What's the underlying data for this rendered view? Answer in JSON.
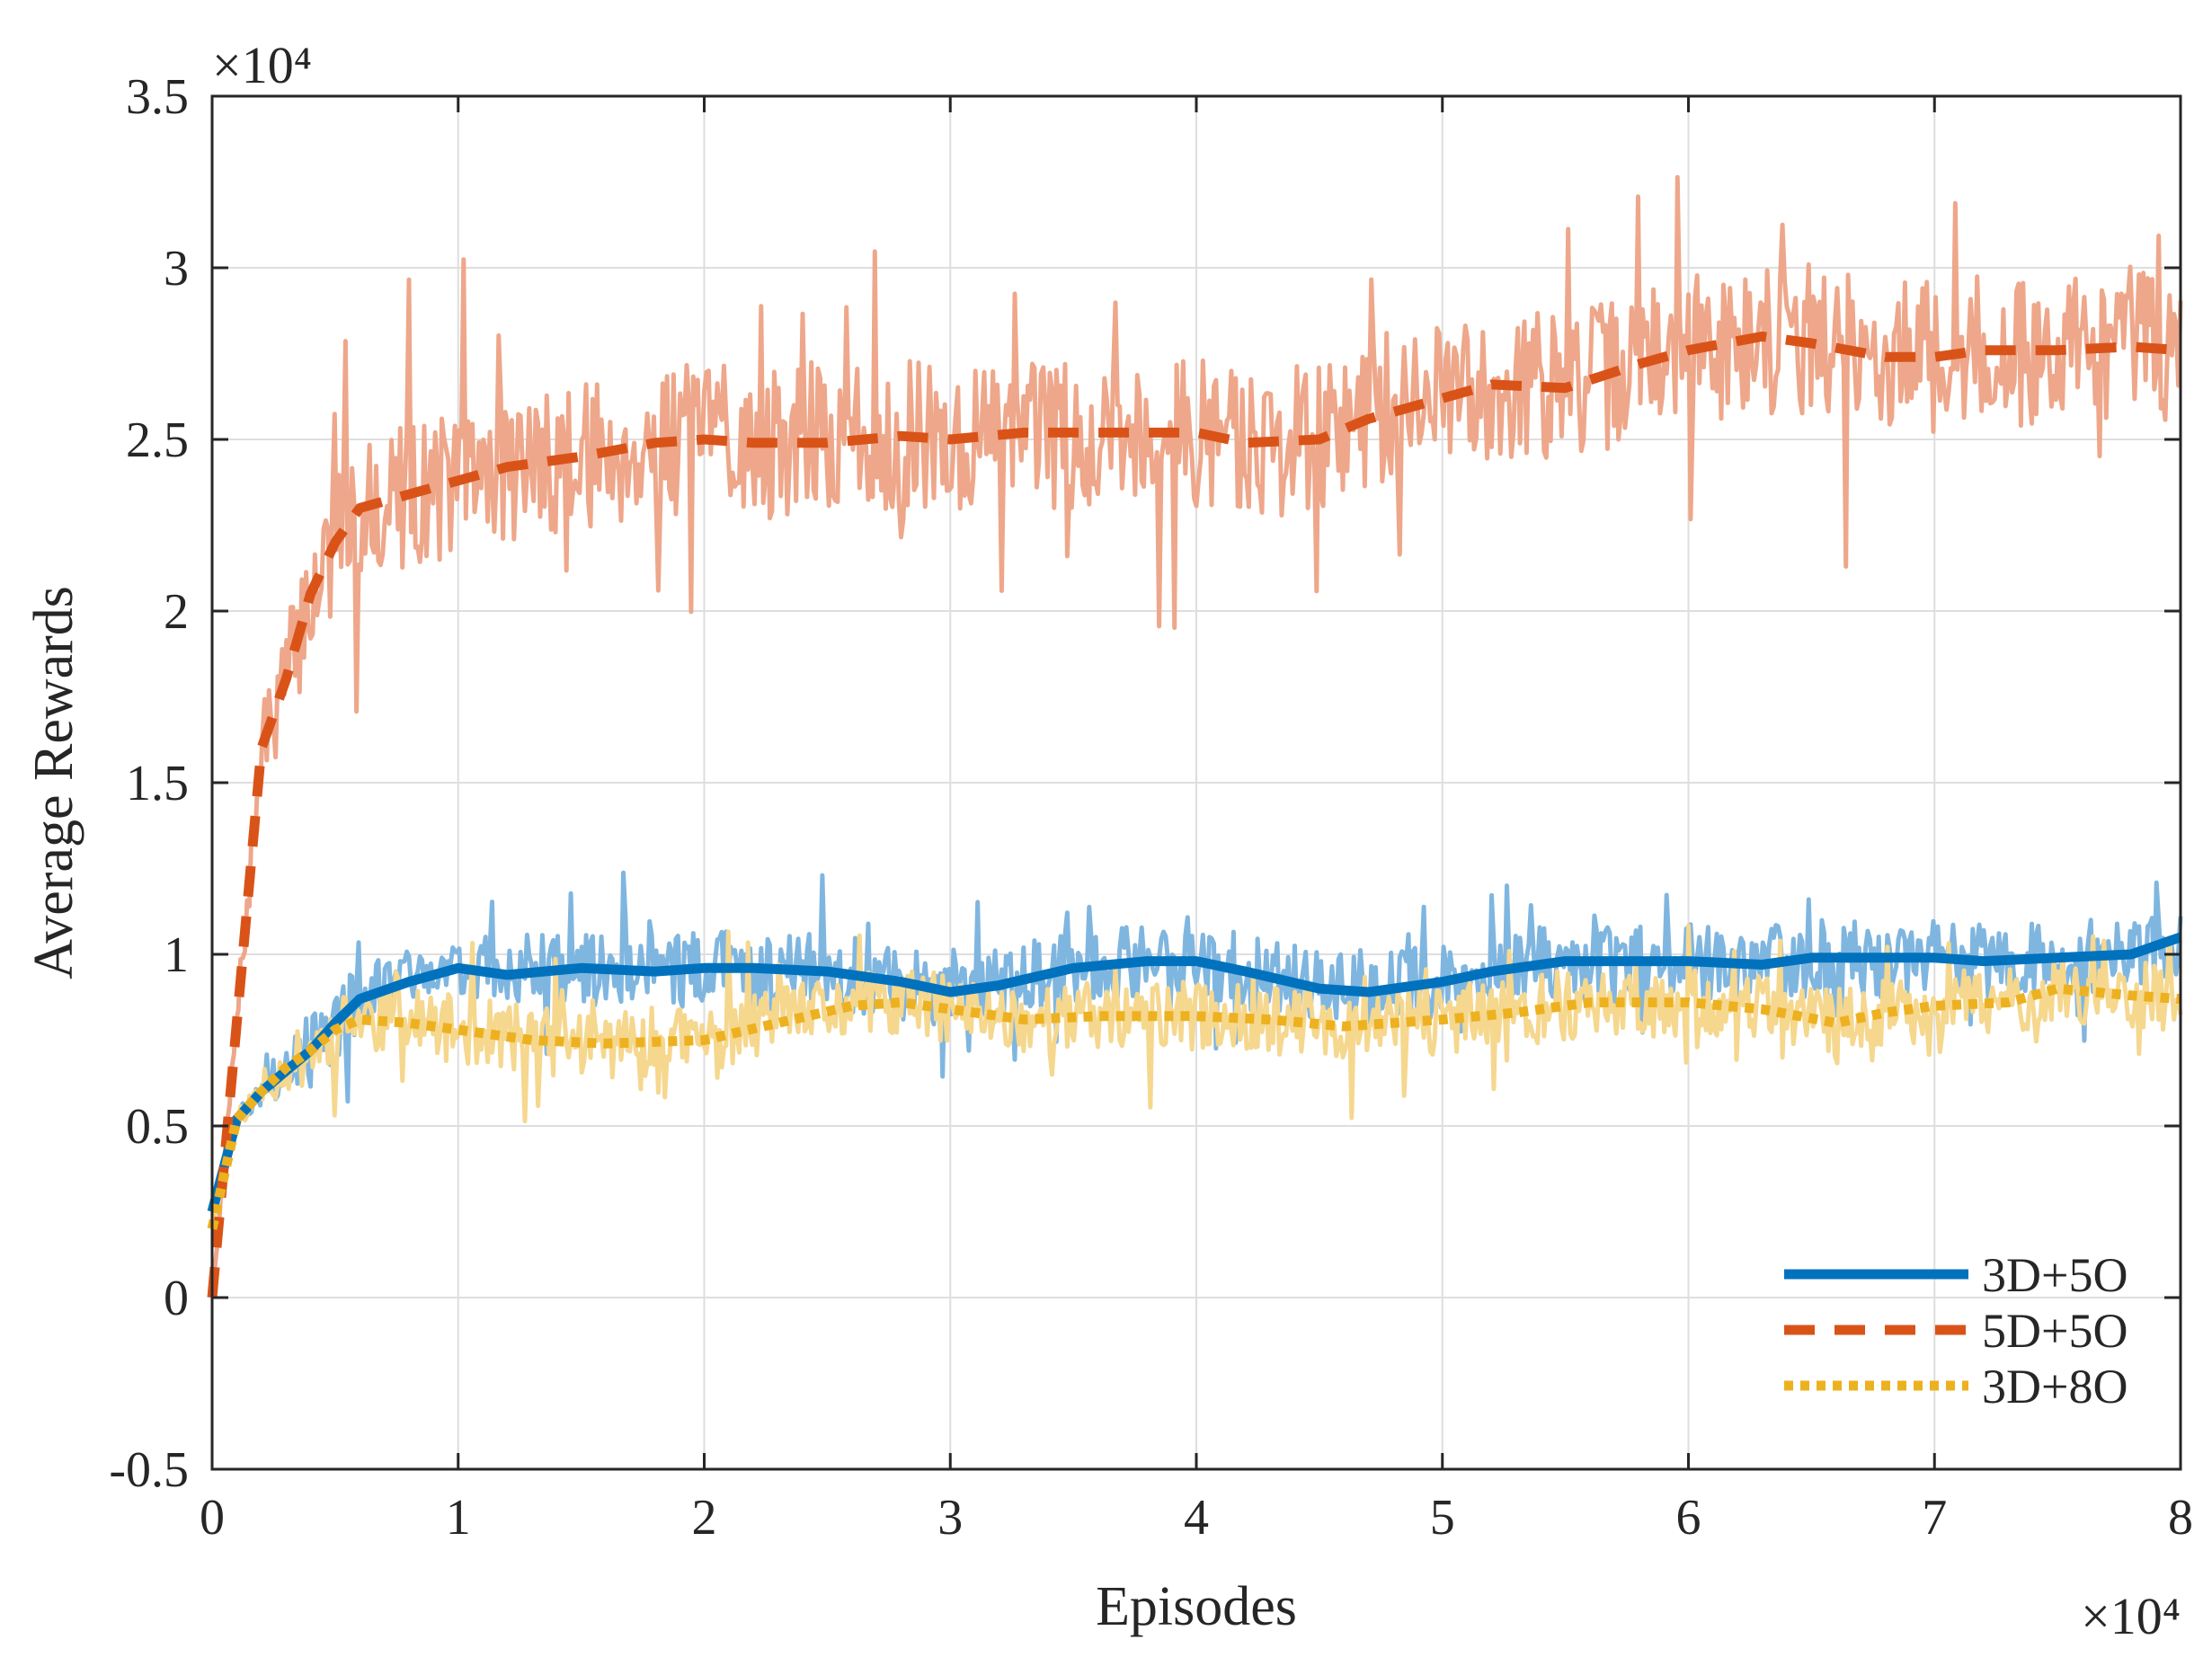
{
  "chart_data": {
    "type": "line",
    "xlabel": "Episodes",
    "ylabel": "Average Rewards",
    "x_exponent_label": "×10⁴",
    "y_exponent_label": "×10⁴",
    "xlim": [
      0,
      8
    ],
    "ylim": [
      -0.5,
      3.5
    ],
    "x_scale": "×10^4",
    "y_scale": "×10^4",
    "xticks": [
      0,
      1,
      2,
      3,
      4,
      5,
      6,
      7,
      8
    ],
    "xtick_labels": [
      "0",
      "1",
      "2",
      "3",
      "4",
      "5",
      "6",
      "7",
      "8"
    ],
    "yticks": [
      -0.5,
      0,
      0.5,
      1,
      1.5,
      2,
      2.5,
      3,
      3.5
    ],
    "ytick_labels": [
      "-0.5",
      "0",
      "0.5",
      "1",
      "1.5",
      "2",
      "2.5",
      "3",
      "3.5"
    ],
    "grid": true,
    "legend_position": "bottom-right",
    "raw_noise": [
      {
        "series": "3D+5O",
        "color": "#7fb6e0",
        "amplitude": 0.11,
        "spike": 0.2,
        "seed": 3
      },
      {
        "series": "5D+5O",
        "color": "#eea78a",
        "amplitude": 0.22,
        "spike": 0.45,
        "seed": 7
      },
      {
        "series": "3D+8O",
        "color": "#f5d78e",
        "amplitude": 0.1,
        "spike": 0.22,
        "seed": 11
      }
    ],
    "series": [
      {
        "name": "3D+5O",
        "color": "#0072bd",
        "style": "solid",
        "x": [
          0,
          0.1,
          0.2,
          0.3,
          0.4,
          0.5,
          0.6,
          0.8,
          1.0,
          1.2,
          1.5,
          1.8,
          2.0,
          2.2,
          2.5,
          2.8,
          3.0,
          3.2,
          3.5,
          3.8,
          4.0,
          4.2,
          4.5,
          4.7,
          5.0,
          5.2,
          5.5,
          6.0,
          6.3,
          6.5,
          7.0,
          7.2,
          7.5,
          7.8,
          8.0
        ],
        "values": [
          0.25,
          0.52,
          0.6,
          0.66,
          0.72,
          0.8,
          0.87,
          0.92,
          0.96,
          0.94,
          0.96,
          0.95,
          0.96,
          0.96,
          0.95,
          0.92,
          0.89,
          0.91,
          0.96,
          0.98,
          0.98,
          0.95,
          0.9,
          0.89,
          0.92,
          0.95,
          0.98,
          0.98,
          0.97,
          0.99,
          0.99,
          0.98,
          0.99,
          1.0,
          1.05
        ]
      },
      {
        "name": "5D+5O",
        "color": "#d95319",
        "style": "dashed",
        "x": [
          0,
          0.1,
          0.15,
          0.2,
          0.3,
          0.4,
          0.5,
          0.6,
          0.8,
          1.0,
          1.2,
          1.5,
          1.8,
          2.0,
          2.2,
          2.5,
          2.8,
          3.0,
          3.3,
          3.7,
          4.0,
          4.2,
          4.5,
          4.7,
          5.0,
          5.2,
          5.5,
          5.8,
          6.0,
          6.3,
          6.5,
          6.8,
          7.0,
          7.2,
          7.5,
          7.8,
          8.0
        ],
        "values": [
          0.0,
          0.8,
          1.2,
          1.6,
          1.8,
          2.05,
          2.2,
          2.3,
          2.34,
          2.38,
          2.42,
          2.45,
          2.49,
          2.5,
          2.49,
          2.49,
          2.51,
          2.5,
          2.52,
          2.52,
          2.52,
          2.49,
          2.5,
          2.56,
          2.62,
          2.66,
          2.65,
          2.72,
          2.76,
          2.8,
          2.78,
          2.74,
          2.74,
          2.76,
          2.76,
          2.77,
          2.76
        ]
      },
      {
        "name": "3D+8O",
        "color": "#edb120",
        "style": "dotted",
        "x": [
          0,
          0.1,
          0.2,
          0.3,
          0.4,
          0.5,
          0.6,
          0.8,
          1.0,
          1.3,
          1.6,
          2.0,
          2.3,
          2.6,
          2.8,
          3.0,
          3.3,
          3.6,
          4.0,
          4.3,
          4.6,
          5.0,
          5.3,
          5.6,
          6.0,
          6.3,
          6.6,
          6.8,
          7.0,
          7.3,
          7.5,
          7.8,
          8.0
        ],
        "values": [
          0.2,
          0.52,
          0.6,
          0.67,
          0.72,
          0.78,
          0.81,
          0.8,
          0.78,
          0.75,
          0.74,
          0.75,
          0.8,
          0.85,
          0.86,
          0.84,
          0.81,
          0.82,
          0.82,
          0.81,
          0.79,
          0.81,
          0.83,
          0.86,
          0.86,
          0.84,
          0.8,
          0.83,
          0.85,
          0.86,
          0.9,
          0.88,
          0.87
        ]
      }
    ]
  }
}
